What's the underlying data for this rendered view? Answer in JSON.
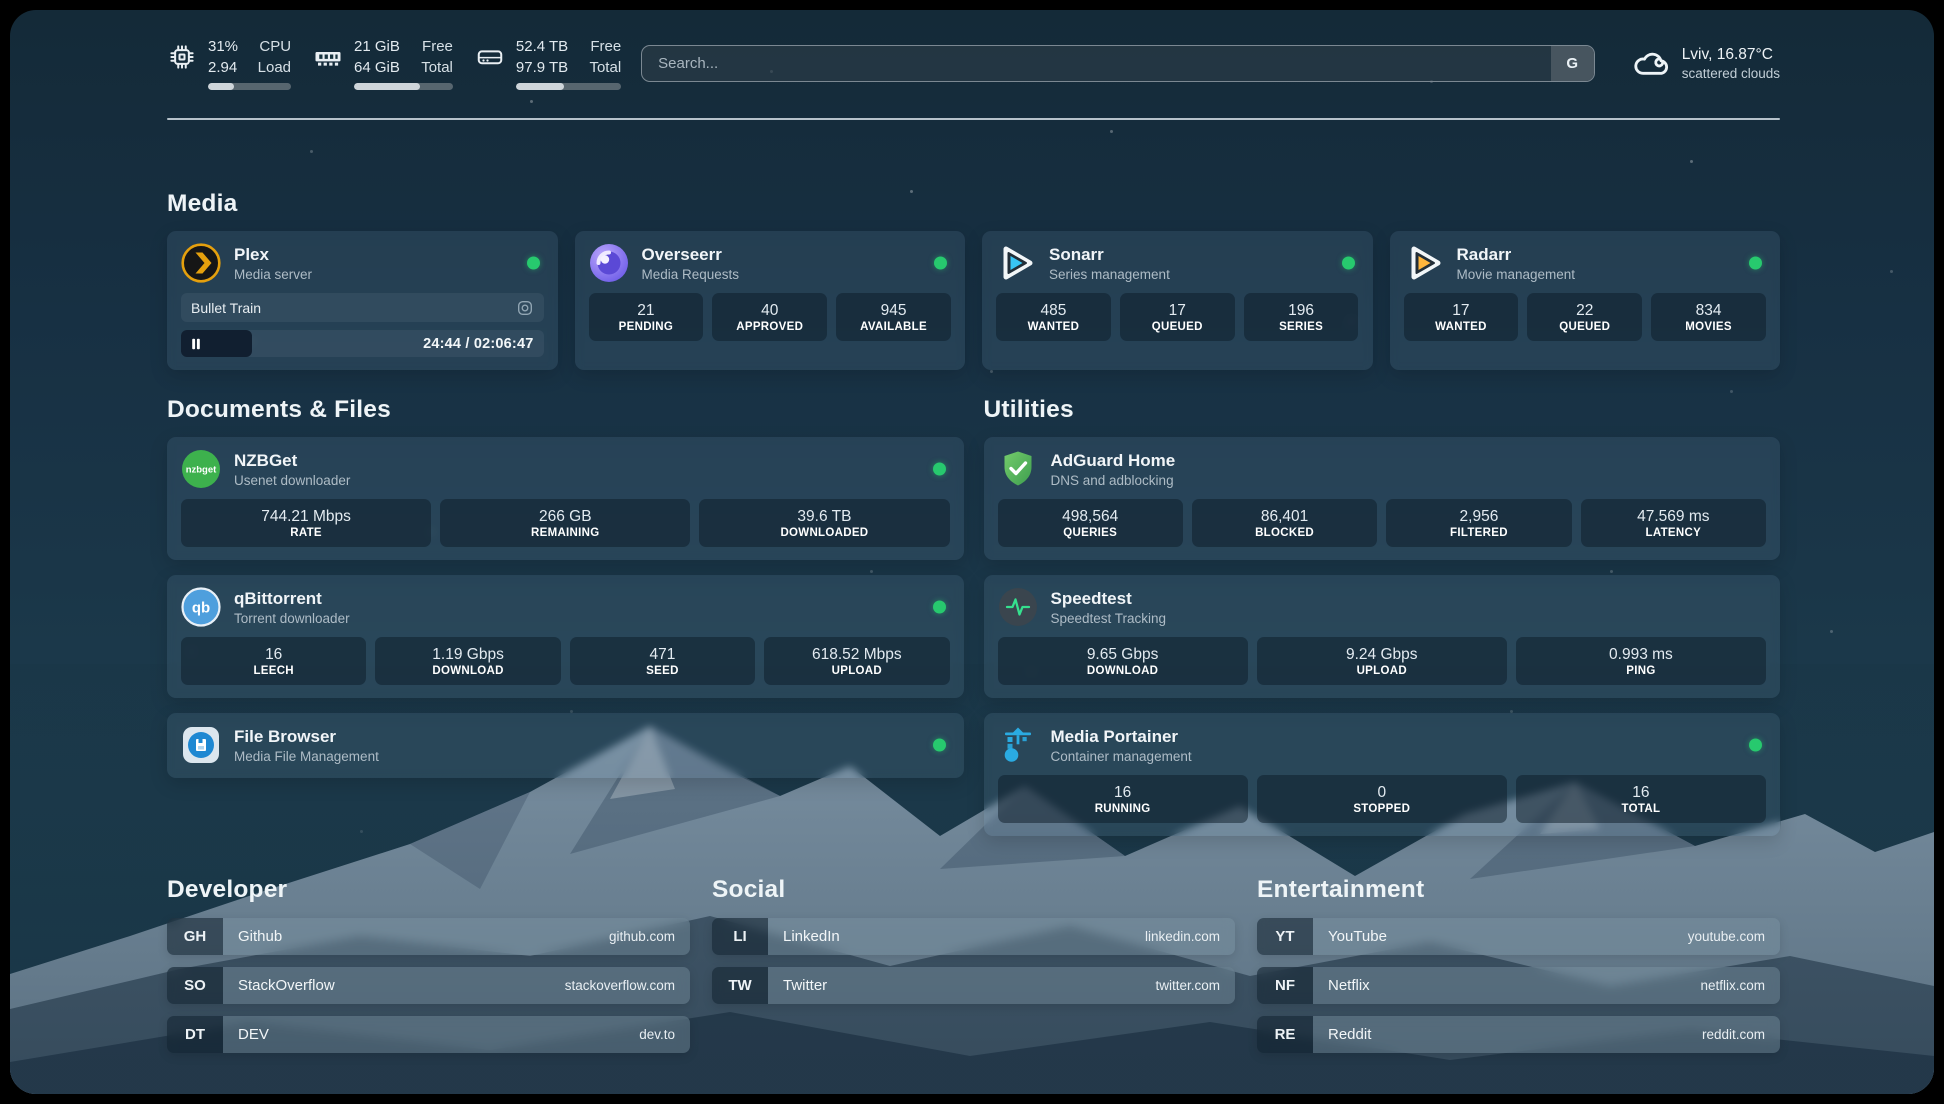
{
  "colors": {
    "status_online": "#27c96e",
    "accent_plex": "#e5a00d",
    "accent_sonarr": "#38c5f4",
    "accent_radarr": "#ffb53c"
  },
  "topbar": {
    "widgets": [
      {
        "id": "cpu",
        "icon": "cpu-icon",
        "values": [
          "31%",
          "2.94"
        ],
        "labels": [
          "CPU",
          "Load"
        ],
        "progress_pct": 31
      },
      {
        "id": "memory",
        "icon": "memory-icon",
        "values": [
          "21 GiB",
          "64 GiB"
        ],
        "labels": [
          "Free",
          "Total"
        ],
        "progress_pct": 67
      },
      {
        "id": "disk",
        "icon": "disk-icon",
        "values": [
          "52.4 TB",
          "97.9 TB"
        ],
        "labels": [
          "Free",
          "Total"
        ],
        "progress_pct": 46
      }
    ],
    "search": {
      "placeholder": "Search...",
      "button_label": "G"
    },
    "weather": {
      "location_temp": "Lviv, 16.87°C",
      "condition": "scattered clouds"
    }
  },
  "groups": [
    {
      "id": "media",
      "title": "Media",
      "services": [
        {
          "id": "plex",
          "name": "Plex",
          "description": "Media server",
          "icon": "plex-icon",
          "online": true,
          "now_playing": {
            "title": "Bullet Train",
            "time": "24:44 / 02:06:47",
            "progress_pct": 19.5
          },
          "stats": []
        },
        {
          "id": "overseerr",
          "name": "Overseerr",
          "description": "Media Requests",
          "icon": "overseerr-icon",
          "online": true,
          "stats": [
            {
              "value": "21",
              "label": "PENDING"
            },
            {
              "value": "40",
              "label": "APPROVED"
            },
            {
              "value": "945",
              "label": "AVAILABLE"
            }
          ]
        },
        {
          "id": "sonarr",
          "name": "Sonarr",
          "description": "Series management",
          "icon": "sonarr-icon",
          "online": true,
          "stats": [
            {
              "value": "485",
              "label": "WANTED"
            },
            {
              "value": "17",
              "label": "QUEUED"
            },
            {
              "value": "196",
              "label": "SERIES"
            }
          ]
        },
        {
          "id": "radarr",
          "name": "Radarr",
          "description": "Movie management",
          "icon": "radarr-icon",
          "online": true,
          "stats": [
            {
              "value": "17",
              "label": "WANTED"
            },
            {
              "value": "22",
              "label": "QUEUED"
            },
            {
              "value": "834",
              "label": "MOVIES"
            }
          ]
        }
      ]
    },
    {
      "id": "documents",
      "title": "Documents & Files",
      "services": [
        {
          "id": "nzbget",
          "name": "NZBGet",
          "description": "Usenet downloader",
          "icon": "nzbget-icon",
          "icon_text": "nzbget",
          "online": true,
          "stats": [
            {
              "value": "744.21 Mbps",
              "label": "RATE"
            },
            {
              "value": "266 GB",
              "label": "REMAINING"
            },
            {
              "value": "39.6 TB",
              "label": "DOWNLOADED"
            }
          ]
        },
        {
          "id": "qbittorrent",
          "name": "qBittorrent",
          "description": "Torrent downloader",
          "icon": "qbittorrent-icon",
          "icon_text": "qb",
          "online": true,
          "stats": [
            {
              "value": "16",
              "label": "LEECH"
            },
            {
              "value": "1.19 Gbps",
              "label": "DOWNLOAD"
            },
            {
              "value": "471",
              "label": "SEED"
            },
            {
              "value": "618.52 Mbps",
              "label": "UPLOAD"
            }
          ]
        },
        {
          "id": "filebrowser",
          "name": "File Browser",
          "description": "Media File Management",
          "icon": "filebrowser-icon",
          "online": true,
          "stats": []
        }
      ]
    },
    {
      "id": "utilities",
      "title": "Utilities",
      "services": [
        {
          "id": "adguard",
          "name": "AdGuard Home",
          "description": "DNS and adblocking",
          "icon": "adguard-icon",
          "online": false,
          "stats": [
            {
              "value": "498,564",
              "label": "QUERIES"
            },
            {
              "value": "86,401",
              "label": "BLOCKED"
            },
            {
              "value": "2,956",
              "label": "FILTERED"
            },
            {
              "value": "47.569 ms",
              "label": "LATENCY"
            }
          ]
        },
        {
          "id": "speedtest",
          "name": "Speedtest",
          "description": "Speedtest Tracking",
          "icon": "speedtest-icon",
          "online": false,
          "stats": [
            {
              "value": "9.65 Gbps",
              "label": "DOWNLOAD"
            },
            {
              "value": "9.24 Gbps",
              "label": "UPLOAD"
            },
            {
              "value": "0.993 ms",
              "label": "PING"
            }
          ]
        },
        {
          "id": "portainer",
          "name": "Media Portainer",
          "description": "Container management",
          "icon": "portainer-icon",
          "online": true,
          "stats": [
            {
              "value": "16",
              "label": "RUNNING"
            },
            {
              "value": "0",
              "label": "STOPPED"
            },
            {
              "value": "16",
              "label": "TOTAL"
            }
          ]
        }
      ]
    }
  ],
  "bookmarks": [
    {
      "title": "Developer",
      "items": [
        {
          "abbr": "GH",
          "label": "Github",
          "url": "github.com"
        },
        {
          "abbr": "SO",
          "label": "StackOverflow",
          "url": "stackoverflow.com"
        },
        {
          "abbr": "DT",
          "label": "DEV",
          "url": "dev.to"
        }
      ]
    },
    {
      "title": "Social",
      "items": [
        {
          "abbr": "LI",
          "label": "LinkedIn",
          "url": "linkedin.com"
        },
        {
          "abbr": "TW",
          "label": "Twitter",
          "url": "twitter.com"
        }
      ]
    },
    {
      "title": "Entertainment",
      "items": [
        {
          "abbr": "YT",
          "label": "YouTube",
          "url": "youtube.com"
        },
        {
          "abbr": "NF",
          "label": "Netflix",
          "url": "netflix.com"
        },
        {
          "abbr": "RE",
          "label": "Reddit",
          "url": "reddit.com"
        }
      ]
    }
  ]
}
